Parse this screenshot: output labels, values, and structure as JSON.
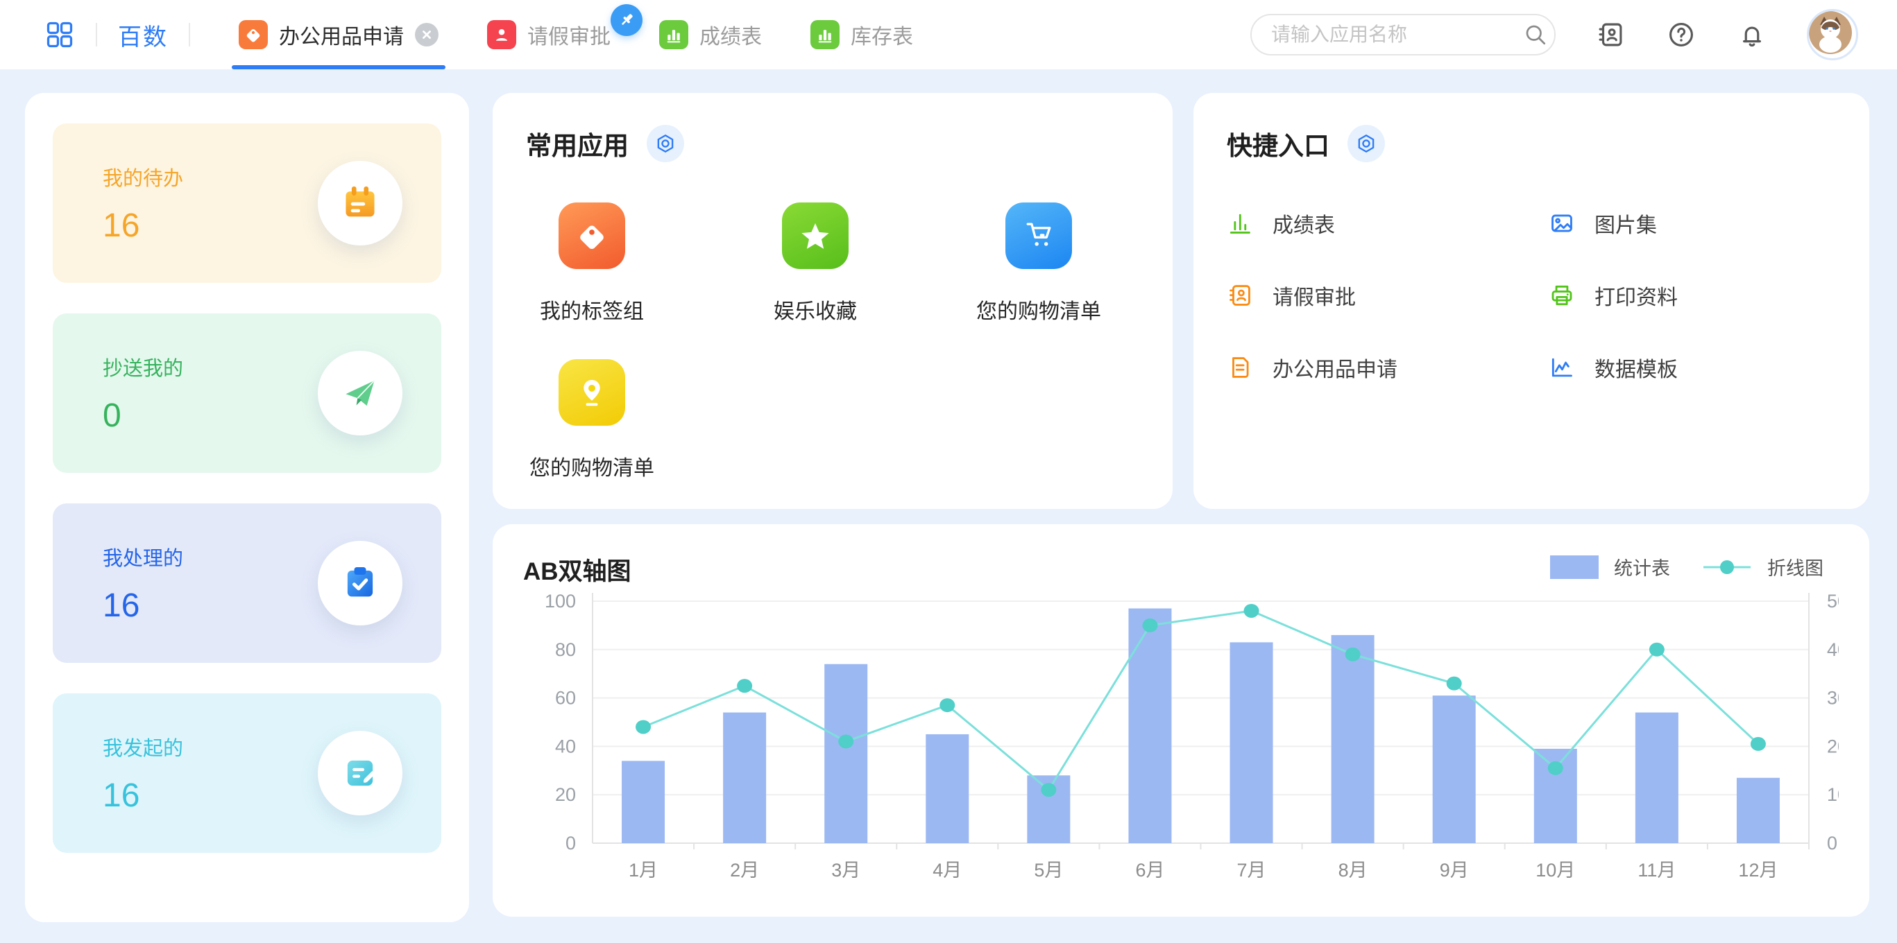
{
  "header": {
    "logo_icon": "grid-logo-icon",
    "logo_text": "百数",
    "tabs": [
      {
        "label": "办公用品申请",
        "icon": "tag-tab-icon",
        "color": "#F97B3C",
        "active": true,
        "closable": true
      },
      {
        "label": "请假审批",
        "icon": "person-tab-icon",
        "color": "#F5434F",
        "pinned": true
      },
      {
        "label": "成绩表",
        "icon": "chart-tab-icon",
        "color": "#6BCB3D"
      },
      {
        "label": "库存表",
        "icon": "chart-tab-icon",
        "color": "#6BCB3D"
      }
    ],
    "search": {
      "placeholder": "请输入应用名称",
      "value": "",
      "icon": "search-icon"
    },
    "actions": [
      {
        "icon": "contacts-icon"
      },
      {
        "icon": "help-icon"
      },
      {
        "icon": "notifications-icon"
      }
    ],
    "avatar": {
      "icon": "cat-avatar"
    }
  },
  "stats": [
    {
      "label": "我的待办",
      "value": "16",
      "icon": "calendar-check-icon",
      "text_color": "#F5A529",
      "bg": "#FDF5E2"
    },
    {
      "label": "抄送我的",
      "value": "0",
      "icon": "paper-plane-icon",
      "text_color": "#36B35D",
      "bg": "#E5F8EE"
    },
    {
      "label": "我处理的",
      "value": "16",
      "icon": "clipboard-check-icon",
      "text_color": "#2565E8",
      "bg": "#E3E9F9"
    },
    {
      "label": "我发起的",
      "value": "16",
      "icon": "note-edit-icon",
      "text_color": "#38C2DC",
      "bg": "#DFF5FB"
    }
  ],
  "common_apps": {
    "title": "常用应用",
    "settings_icon": "gear-icon",
    "apps": [
      {
        "label": "我的标签组",
        "icon": "tag-icon",
        "tile": "orange"
      },
      {
        "label": "娱乐收藏",
        "icon": "star-icon",
        "tile": "green"
      },
      {
        "label": "您的购物清单",
        "icon": "cart-icon",
        "tile": "blue"
      },
      {
        "label": "您的购物清单",
        "icon": "pin-icon",
        "tile": "yellow"
      }
    ]
  },
  "quick_entry": {
    "title": "快捷入口",
    "settings_icon": "gear-icon",
    "items": [
      {
        "label": "成绩表",
        "icon": "bar-chart-icon",
        "color": "#52C41A"
      },
      {
        "label": "图片集",
        "icon": "image-icon",
        "color": "#2E7CF6"
      },
      {
        "label": "请假审批",
        "icon": "approval-icon",
        "color": "#FA8C16"
      },
      {
        "label": "打印资料",
        "icon": "printer-icon",
        "color": "#52C41A"
      },
      {
        "label": "办公用品申请",
        "icon": "document-icon",
        "color": "#FA8C16"
      },
      {
        "label": "数据模板",
        "icon": "line-chart-icon",
        "color": "#2E7CF6"
      }
    ]
  },
  "chart_data": {
    "type": "combo",
    "title": "AB双轴图",
    "categories": [
      "1月",
      "2月",
      "3月",
      "4月",
      "5月",
      "6月",
      "7月",
      "8月",
      "9月",
      "10月",
      "11月",
      "12月"
    ],
    "series": [
      {
        "name": "统计表",
        "type": "bar",
        "axis": "left",
        "color": "#9CB8F2",
        "values": [
          34,
          54,
          74,
          45,
          28,
          97,
          83,
          86,
          61,
          39,
          54,
          27
        ]
      },
      {
        "name": "折线图",
        "type": "line",
        "axis": "right",
        "color": "#7BE0DB",
        "point_color": "#4FCFC8",
        "values": [
          24,
          32.5,
          21,
          28.5,
          11,
          45,
          48,
          39,
          33,
          15.5,
          40,
          20.5
        ]
      }
    ],
    "left_axis": {
      "min": 0,
      "max": 100,
      "step": 20
    },
    "right_axis": {
      "min": 0,
      "max": 50,
      "step": 10
    },
    "grid": true,
    "legend_position": "top-right"
  }
}
